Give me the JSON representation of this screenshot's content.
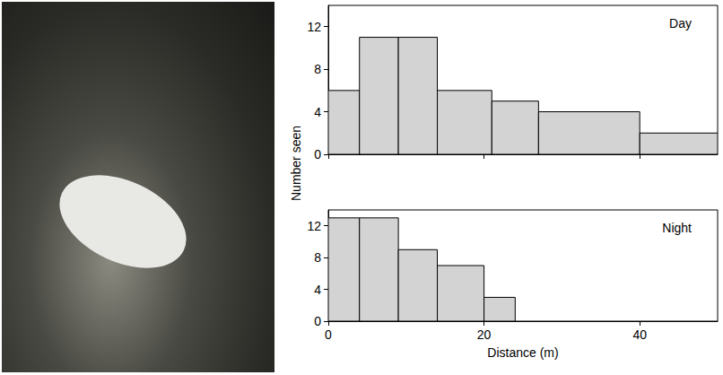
{
  "chart_data": [
    {
      "type": "histogram",
      "title": "Day",
      "ylabel": "Number seen",
      "bins": [
        0,
        4,
        9,
        14,
        21,
        27,
        40,
        50
      ],
      "values": [
        6,
        11,
        11,
        6,
        5,
        4,
        2
      ],
      "color": "#d3d3d3",
      "xlim": [
        0,
        50
      ],
      "xticks": [
        0,
        20,
        40
      ],
      "ylim": [
        0,
        14
      ],
      "yticks": [
        0,
        4,
        8,
        12
      ],
      "grid": false,
      "tick_labels": "y"
    },
    {
      "type": "histogram",
      "title": "Night",
      "xlabel": "Distance (m)",
      "bins": [
        0,
        4,
        9,
        14,
        20,
        24
      ],
      "values": [
        13,
        13,
        9,
        7,
        3
      ],
      "color": "#d3d3d3",
      "xlim": [
        0,
        50
      ],
      "xticks": [
        0,
        20,
        40
      ],
      "ylim": [
        0,
        14
      ],
      "yticks": [
        0,
        4,
        8,
        12
      ],
      "grid": false
    }
  ]
}
